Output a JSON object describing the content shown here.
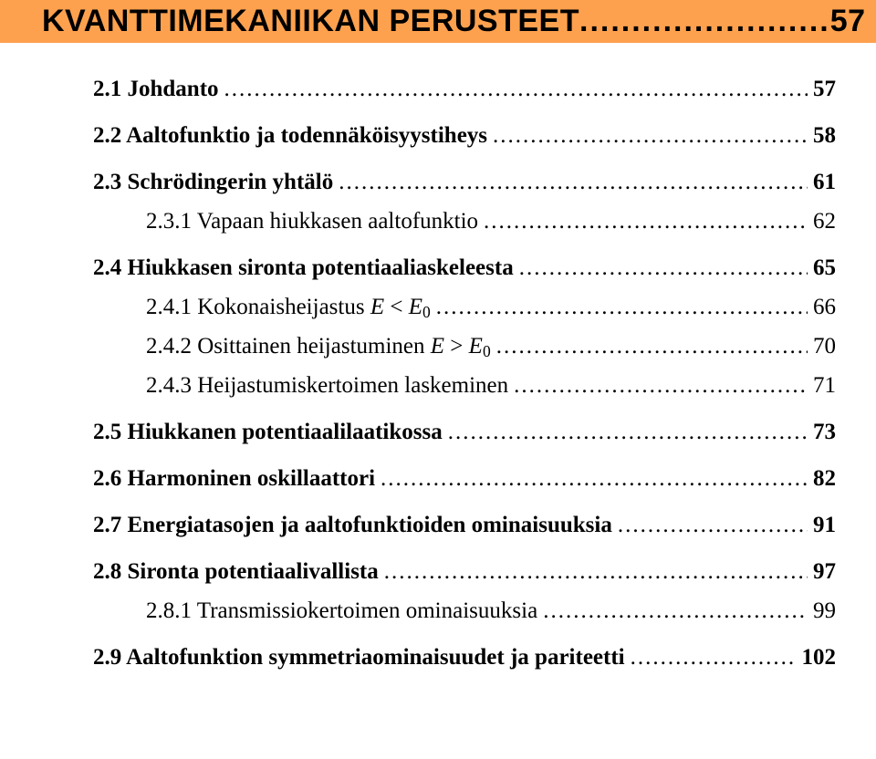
{
  "colors": {
    "title_bg": "#fea14e",
    "text": "#000000",
    "page_bg": "#ffffff"
  },
  "typography": {
    "title_font": "Arial",
    "title_weight": "bold",
    "title_size_pt": 26,
    "body_font": "Times New Roman",
    "level1_weight": "bold",
    "level1_size_pt": 19,
    "level2_weight": "normal",
    "level2_size_pt": 19
  },
  "leader_char": ".",
  "chapter": {
    "title": "KVANTTIMEKANIIKAN PERUSTEET",
    "page": "57"
  },
  "toc": [
    {
      "level": 1,
      "label_parts": [
        {
          "t": "2.1 Johdanto"
        }
      ],
      "page": "57"
    },
    {
      "level": 1,
      "label_parts": [
        {
          "t": "2.2 Aaltofunktio ja todennäköisyystiheys"
        }
      ],
      "page": "58"
    },
    {
      "level": 1,
      "label_parts": [
        {
          "t": "2.3 Schrödingerin yhtälö"
        }
      ],
      "page": "61"
    },
    {
      "level": 2,
      "label_parts": [
        {
          "t": "2.3.1 Vapaan hiukkasen aaltofunktio"
        }
      ],
      "page": "62"
    },
    {
      "level": 1,
      "label_parts": [
        {
          "t": "2.4 Hiukkasen sironta potentiaaliaskeleesta"
        }
      ],
      "page": "65"
    },
    {
      "level": 2,
      "label_parts": [
        {
          "t": "2.4.1 Kokonaisheijastus "
        },
        {
          "t": "E",
          "style": "italic"
        },
        {
          "t": " < "
        },
        {
          "t": "E",
          "style": "italic"
        },
        {
          "t": "0",
          "style": "sub"
        }
      ],
      "page": "66"
    },
    {
      "level": 2,
      "label_parts": [
        {
          "t": "2.4.2 Osittainen heijastuminen "
        },
        {
          "t": "E",
          "style": "italic"
        },
        {
          "t": " > "
        },
        {
          "t": "E",
          "style": "italic"
        },
        {
          "t": "0",
          "style": "sub"
        }
      ],
      "page": "70"
    },
    {
      "level": 2,
      "label_parts": [
        {
          "t": "2.4.3 Heijastumiskertoimen laskeminen"
        }
      ],
      "page": "71"
    },
    {
      "level": 1,
      "label_parts": [
        {
          "t": "2.5 Hiukkanen potentiaalilaatikossa"
        }
      ],
      "page": "73"
    },
    {
      "level": 1,
      "label_parts": [
        {
          "t": "2.6 Harmoninen oskillaattori"
        }
      ],
      "page": "82"
    },
    {
      "level": 1,
      "label_parts": [
        {
          "t": "2.7 Energiatasojen ja aaltofunktioiden ominaisuuksia"
        }
      ],
      "page": "91"
    },
    {
      "level": 1,
      "label_parts": [
        {
          "t": "2.8 Sironta potentiaalivallista"
        }
      ],
      "page": "97"
    },
    {
      "level": 2,
      "label_parts": [
        {
          "t": "2.8.1 Transmissiokertoimen ominaisuuksia"
        }
      ],
      "page": "99"
    },
    {
      "level": 1,
      "label_parts": [
        {
          "t": "2.9 Aaltofunktion symmetriaominaisuudet ja pariteetti"
        }
      ],
      "page": "102"
    }
  ]
}
